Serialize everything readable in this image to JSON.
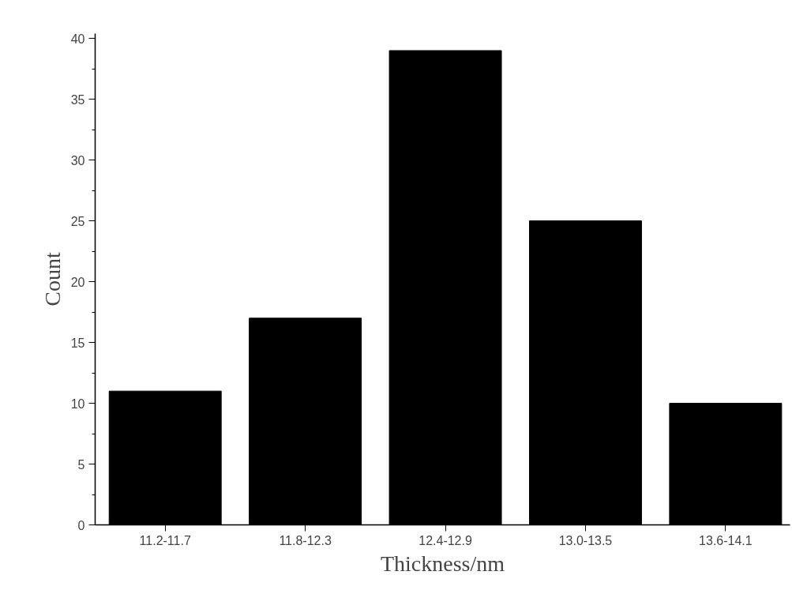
{
  "chart_data": {
    "type": "bar",
    "xlabel": "Thickness/nm",
    "ylabel": "Count",
    "categories": [
      "11.2-11.7",
      "11.8-12.3",
      "12.4-12.9",
      "13.0-13.5",
      "13.6-14.1"
    ],
    "values": [
      11,
      17,
      39,
      25,
      10
    ],
    "color": "#000000",
    "ylim": [
      0,
      40.4
    ],
    "yticks": [
      0,
      5,
      10,
      15,
      20,
      25,
      30,
      35,
      40
    ],
    "grid": false
  }
}
